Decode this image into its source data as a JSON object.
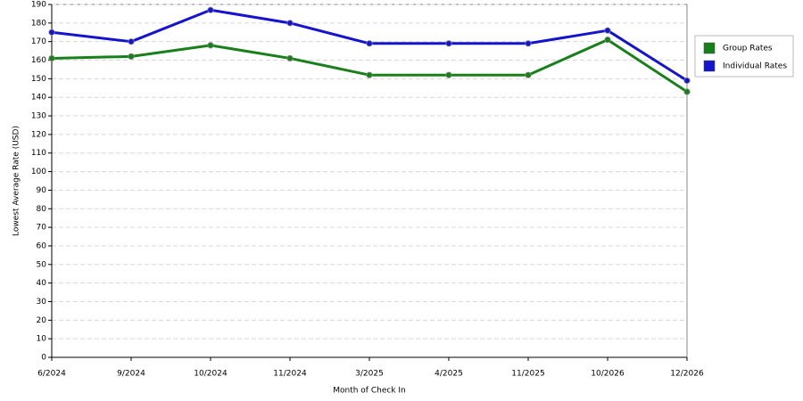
{
  "chart_data": {
    "type": "line",
    "x_label": "Month of Check In",
    "y_label": "Lowest Average Rate (USD)",
    "categories": [
      "6/2024",
      "9/2024",
      "10/2024",
      "11/2024",
      "3/2025",
      "4/2025",
      "11/2025",
      "10/2026",
      "12/2026"
    ],
    "series": [
      {
        "name": "Group Rates",
        "color": "#188018",
        "values": [
          161,
          162,
          168,
          161,
          152,
          152,
          152,
          171,
          143
        ]
      },
      {
        "name": "Individual Rates",
        "color": "#1414d0",
        "values": [
          175,
          170,
          187,
          180,
          169,
          169,
          169,
          176,
          149
        ]
      }
    ],
    "ylim": [
      0,
      190
    ],
    "yticks": [
      0,
      10,
      20,
      30,
      40,
      50,
      60,
      70,
      80,
      90,
      100,
      110,
      120,
      130,
      140,
      150,
      160,
      170,
      180,
      190
    ],
    "grid": true,
    "legend": "right"
  }
}
